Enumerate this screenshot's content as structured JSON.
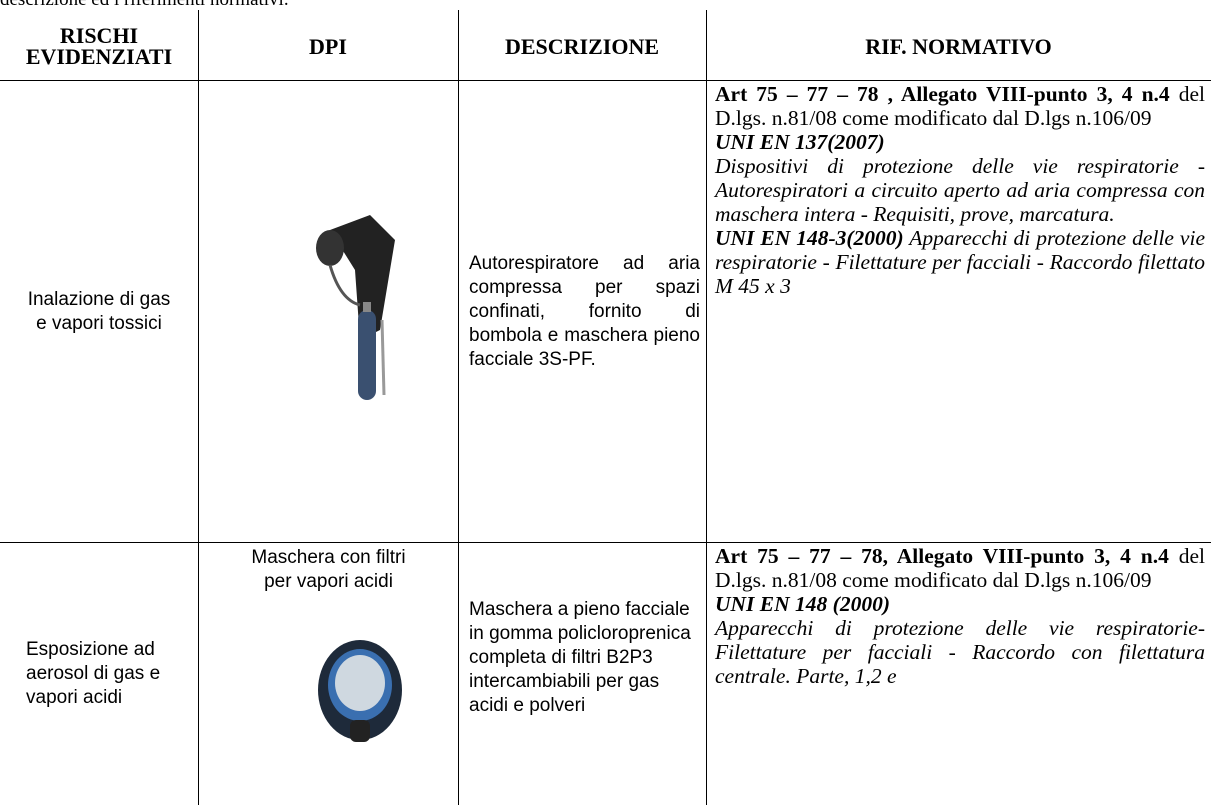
{
  "intro": "descrizione ed i riferimenti normativi.",
  "table": {
    "headers": [
      "RISCHI EVIDENZIATI",
      "DPI",
      "DESCRIZIONE",
      "RIF. NORMATIVO"
    ],
    "rows": [
      {
        "risk": "Inalazione di gas e vapori tossici",
        "dpi": "",
        "description": "Autorespiratore ad aria compressa per spazi confinati, fornito di bombola e maschera pieno facciale 3S-PF.",
        "rif": [
          "Art 75 – 77 – 78 , Allegato VIII-punto 3, 4 n.4",
          " del D.lgs. n.81/08 come modificato dal D.lgs n.106/09",
          "UNI EN 137(2007)",
          "Dispositivi di protezione delle vie respiratorie - Autorespiratori a circuito aperto ad aria compressa con maschera intera - Requisiti, prove, marcatura.",
          "UNI EN 148-3(2000)",
          " Apparecchi di protezione delle vie respiratorie - Filettature per facciali - Raccordo filettato M 45 x 3"
        ]
      },
      {
        "risk": "Esposizione ad aerosol di gas e vapori acidi",
        "dpi": "Maschera con filtri per vapori acidi",
        "description": "Maschera a pieno facciale in gomma policloroprenica completa di filtri B2P3 intercambiabili per gas acidi e polveri",
        "rif": [
          "Art 75 – 77 – 78, Allegato VIII-punto 3, 4 n.4",
          " del D.lgs. n.81/08 come modificato dal D.lgs n.106/09",
          "UNI EN 148 (2000)",
          "Apparecchi di protezione delle vie respiratorie- Filettature per facciali - Raccordo con filettatura centrale. Parte, 1,2 e"
        ]
      }
    ]
  }
}
